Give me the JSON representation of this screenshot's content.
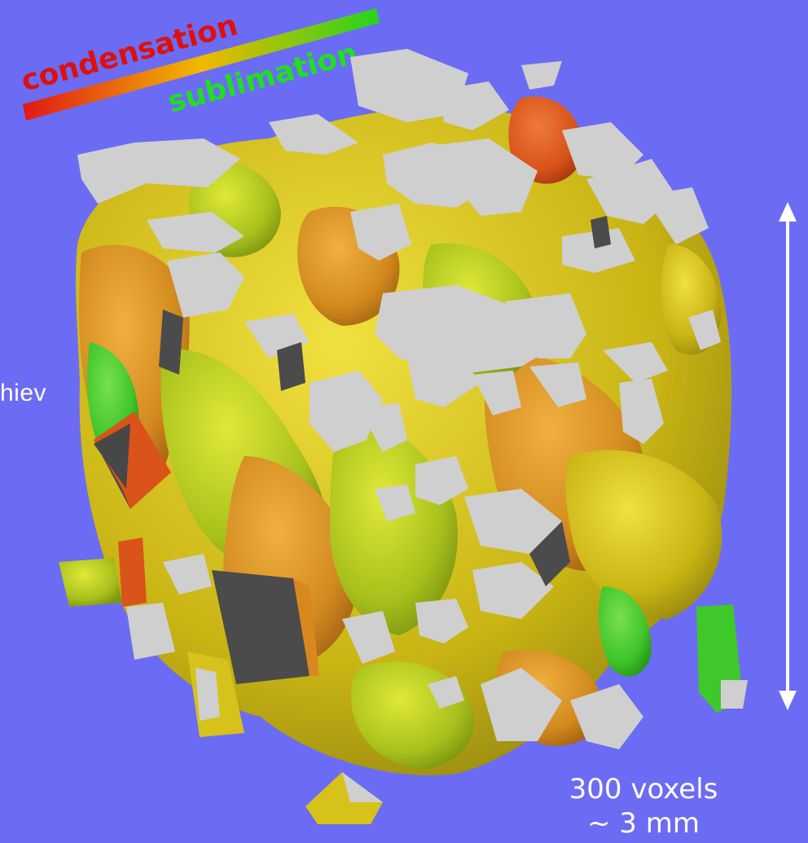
{
  "legend": {
    "condensation_label": "condensation",
    "sublimation_label": "sublimation",
    "gradient_start_color": "#e01818",
    "gradient_mid_color": "#f2b800",
    "gradient_end_color": "#26d41c",
    "condensation_color": "#dd1010",
    "sublimation_color": "#22dd22"
  },
  "side_text": "hiev",
  "scale": {
    "voxels_label": "300 voxels",
    "size_label": "~ 3 mm"
  },
  "colors": {
    "background": "#6b6cf3",
    "cut_face": "#cfcfcf",
    "shadow_face": "#4b4b4b",
    "yellow": "#d6c21a",
    "yellow_green": "#b8c820",
    "orange": "#d8891e",
    "red_orange": "#d9531a",
    "green": "#3ec82a",
    "arrow": "#ffffff"
  }
}
